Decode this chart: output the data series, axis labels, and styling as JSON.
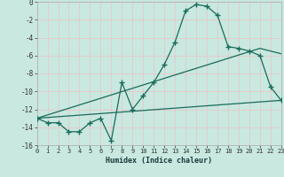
{
  "xlabel": "Humidex (Indice chaleur)",
  "bg_color": "#c8e8e0",
  "grid_color": "#e8c8c8",
  "line_color": "#1a6b5a",
  "xmin": 0,
  "xmax": 23,
  "ymin": -16,
  "ymax": 0,
  "yticks": [
    0,
    -2,
    -4,
    -6,
    -8,
    -10,
    -12,
    -14,
    -16
  ],
  "line1_x": [
    0,
    1,
    2,
    3,
    4,
    5,
    6,
    7,
    8,
    9,
    10,
    11,
    12,
    13,
    14,
    15,
    16,
    17,
    18,
    19,
    20,
    21,
    22,
    23
  ],
  "line1_y": [
    -13.0,
    -13.5,
    -13.5,
    -14.5,
    -14.5,
    -13.5,
    -13.0,
    -15.5,
    -9.0,
    -12.0,
    -10.5,
    -9.0,
    -7.0,
    -4.5,
    -1.0,
    -0.3,
    -0.5,
    -1.5,
    -5.0,
    -5.2,
    -5.5,
    -6.0,
    -9.5,
    -11.0
  ],
  "line2_x": [
    0,
    21,
    23
  ],
  "line2_y": [
    -13.0,
    -5.2,
    -5.8
  ],
  "line3_x": [
    0,
    23
  ],
  "line3_y": [
    -13.0,
    -11.0
  ]
}
